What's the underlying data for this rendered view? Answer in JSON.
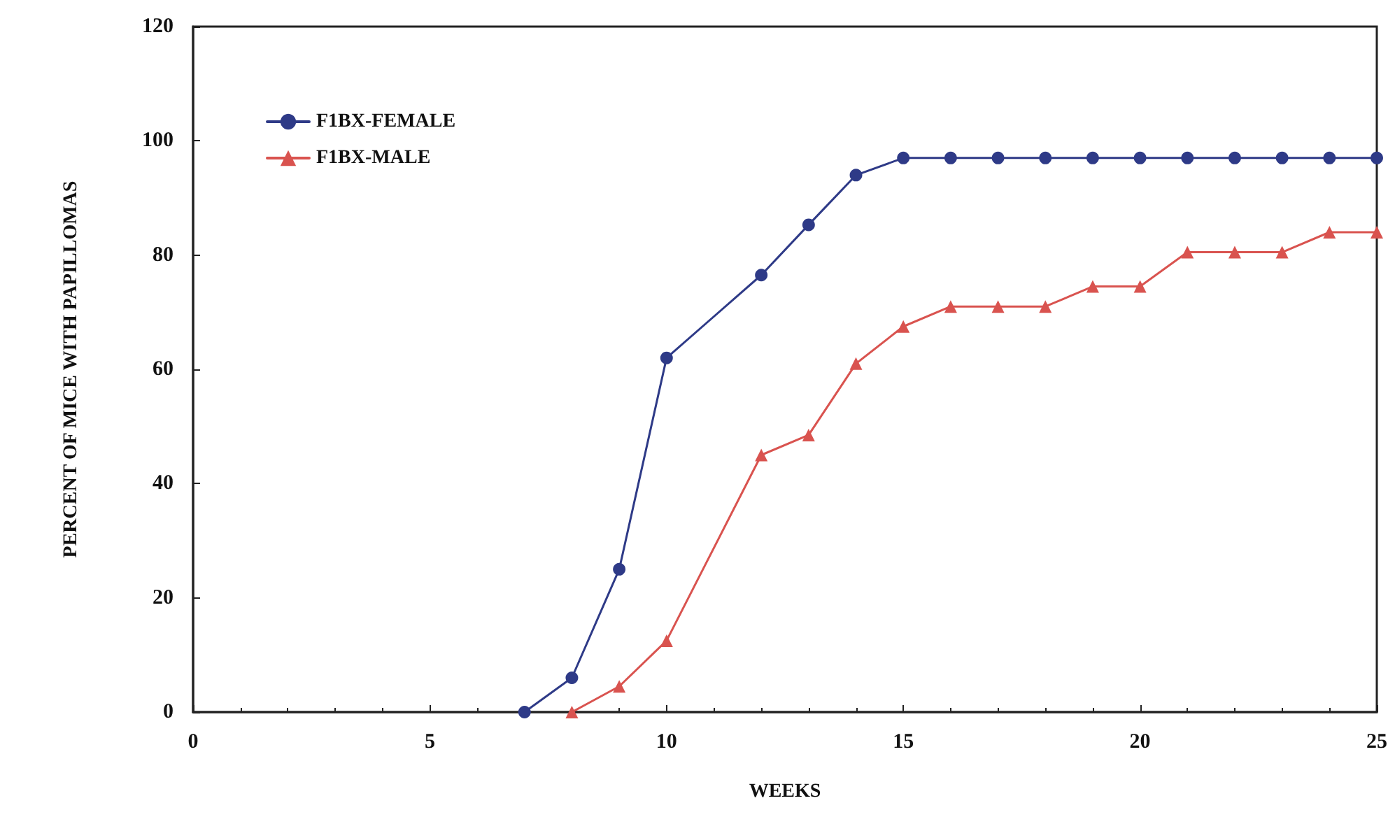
{
  "chart_data": {
    "type": "line",
    "xlabel": "WEEKS",
    "ylabel": "PERCENT OF MICE WITH PAPILLOMAS",
    "xlim": [
      0,
      25
    ],
    "xticks": [
      0,
      5,
      10,
      15,
      20,
      25
    ],
    "ylim": [
      0,
      120
    ],
    "yticks": [
      0,
      20,
      40,
      60,
      80,
      100,
      120
    ],
    "grid": false,
    "legend": "top left",
    "series": [
      {
        "name": "F1BX-FEMALE",
        "color": "#2e3a87",
        "marker": "circle",
        "x": [
          7,
          8,
          9,
          10,
          12,
          13,
          14,
          15,
          16,
          17,
          18,
          19,
          20,
          21,
          22,
          23,
          24,
          25
        ],
        "values": [
          0,
          6,
          25,
          62,
          76.5,
          85.3,
          94,
          97,
          97,
          97,
          97,
          97,
          97,
          97,
          97,
          97,
          97,
          97
        ]
      },
      {
        "name": "F1BX-MALE",
        "color": "#d9534f",
        "marker": "triangle",
        "x": [
          8,
          9,
          10,
          12,
          13,
          14,
          15,
          16,
          17,
          18,
          19,
          20,
          21,
          22,
          23,
          24,
          25
        ],
        "values": [
          0,
          4.5,
          12.5,
          45,
          48.5,
          61,
          67.5,
          71,
          71,
          71,
          74.5,
          74.5,
          80.5,
          80.5,
          80.5,
          84,
          84
        ]
      }
    ]
  }
}
